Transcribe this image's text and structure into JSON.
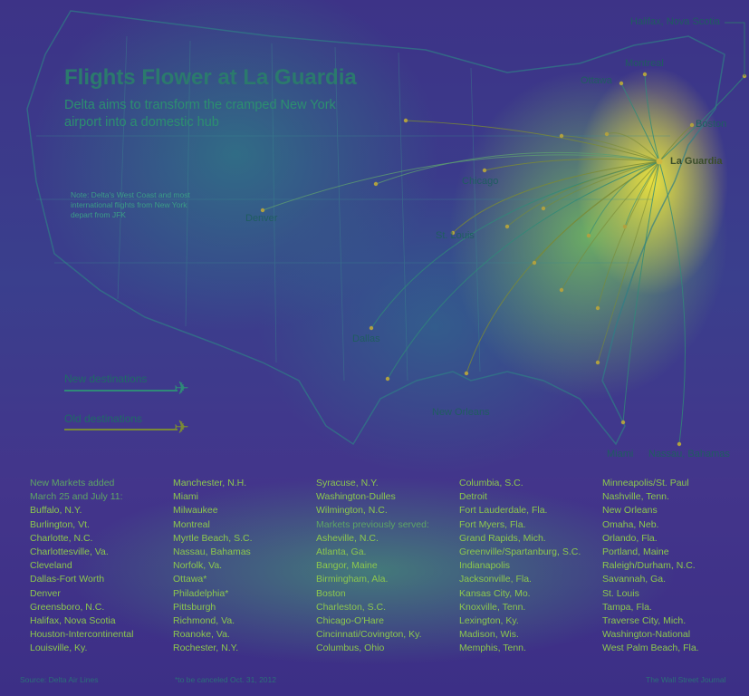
{
  "header": {
    "title": "Flights Flower at La Guardia",
    "subtitle": "Delta aims to transform the cramped New York airport into a domestic hub",
    "note": "Note: Delta's West Coast and most international flights from New York depart from JFK"
  },
  "cities": {
    "halifax": "Halifax, Nova Scotia",
    "montreal": "Montreal",
    "ottawa": "Ottawa",
    "boston": "Boston",
    "laguardia": "La Guardia",
    "chicago": "Chicago",
    "denver": "Denver",
    "stlouis": "St. Louis",
    "dallas": "Dallas",
    "neworleans": "New Orleans",
    "miami": "Miami",
    "nassau": "Nassau, Bahamas"
  },
  "legend": {
    "new": "New destinations",
    "old": "Old destinations",
    "new_color": "#2f8a78",
    "old_color": "#7a8a35"
  },
  "lists": {
    "col1": [
      "New Markets added",
      "March 25 and July 11:",
      "Buffalo, N.Y.",
      "Burlington, Vt.",
      "Charlotte, N.C.",
      "Charlottesville, Va.",
      "Cleveland",
      "Dallas-Fort Worth",
      "Denver",
      "Greensboro, N.C.",
      "Halifax, Nova Scotia",
      "Houston-Intercontinental",
      "Louisville, Ky."
    ],
    "col2": [
      "Manchester, N.H.",
      "Miami",
      "Milwaukee",
      "Montreal",
      "Myrtle Beach, S.C.",
      "Nassau, Bahamas",
      "Norfolk, Va.",
      "Ottawa*",
      "Philadelphia*",
      "Pittsburgh",
      "Richmond, Va.",
      "Roanoke, Va.",
      "Rochester, N.Y."
    ],
    "col3": [
      "Syracuse, N.Y.",
      "Washington-Dulles",
      "Wilmington, N.C.",
      "Markets previously served:",
      "Asheville, N.C.",
      "Atlanta, Ga.",
      "Bangor, Maine",
      "Birmingham, Ala.",
      "Boston",
      "Charleston, S.C.",
      "Chicago-O'Hare",
      "Cincinnati/Covington, Ky.",
      "Columbus, Ohio"
    ],
    "col4": [
      "Columbia, S.C.",
      "Detroit",
      "Fort Lauderdale, Fla.",
      "Fort Myers, Fla.",
      "Grand Rapids, Mich.",
      "Greenville/Spartanburg, S.C.",
      "Indianapolis",
      "Jacksonville, Fla.",
      "Kansas City, Mo.",
      "Knoxville, Tenn.",
      "Lexington, Ky.",
      "Madison, Wis.",
      "Memphis, Tenn."
    ],
    "col5": [
      "Minneapolis/St. Paul",
      "Nashville, Tenn.",
      "New Orleans",
      "Omaha, Neb.",
      "Orlando, Fla.",
      "Portland, Maine",
      "Raleigh/Durham, N.C.",
      "Savannah, Ga.",
      "St. Louis",
      "Tampa, Fla.",
      "Traverse City, Mich.",
      "Washington-National",
      "West Palm Beach, Fla."
    ]
  },
  "footer": {
    "source": "Source: Delta Air Lines",
    "footnote": "*to be canceled Oct. 31, 2012",
    "credit": "The Wall Street Journal"
  }
}
